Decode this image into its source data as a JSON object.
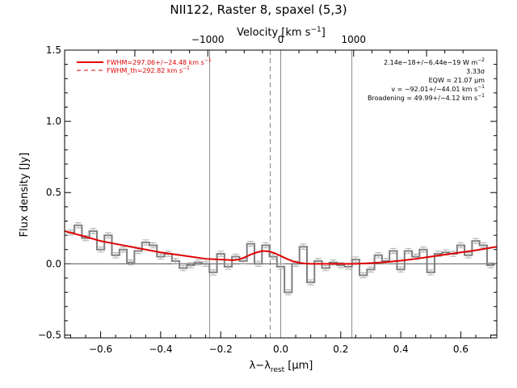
{
  "chart_data": {
    "type": "line",
    "title": "NII122, Raster 8, spaxel (5,3)",
    "xlabel": "λ−λ",
    "xlabel_sub": "rest",
    "xlabel_unit": " [μm]",
    "ylabel": "Flux density [Jy]",
    "top_axis_label": "Velocity [km s",
    "top_axis_label_sup": "−1",
    "top_axis_label_end": "]",
    "xlim": [
      -0.72,
      0.72
    ],
    "ylim": [
      -0.52,
      1.5
    ],
    "top_axis": {
      "ticks": [
        -1000,
        0,
        1000
      ],
      "tick_labels": [
        "−1000",
        "0",
        "1000"
      ],
      "um_per_kms": 0.000243
    },
    "x_ticks": [
      -0.6,
      -0.4,
      -0.2,
      0.0,
      0.2,
      0.4,
      0.6
    ],
    "x_tick_labels": [
      "−0.6",
      "−0.4",
      "−0.2",
      "0.0",
      "0.2",
      "0.4",
      "0.6"
    ],
    "y_ticks": [
      -0.5,
      0.0,
      0.5,
      1.0,
      1.5
    ],
    "y_tick_labels": [
      "−0.5",
      "0.0",
      "0.5",
      "1.0",
      "1.5"
    ],
    "vertical_lines": [
      {
        "x": -0.237,
        "style": "solid"
      },
      {
        "x": -0.035,
        "style": "dashed"
      },
      {
        "x": 0.0,
        "style": "solid"
      },
      {
        "x": 0.237,
        "style": "solid"
      }
    ],
    "series": [
      {
        "type": "step",
        "color": "#7f7f7f",
        "x": [
          -0.7,
          -0.675,
          -0.65,
          -0.625,
          -0.6,
          -0.575,
          -0.55,
          -0.525,
          -0.5,
          -0.475,
          -0.45,
          -0.425,
          -0.4,
          -0.375,
          -0.35,
          -0.325,
          -0.3,
          -0.275,
          -0.25,
          -0.225,
          -0.2,
          -0.175,
          -0.15,
          -0.125,
          -0.1,
          -0.075,
          -0.05,
          -0.025,
          0.0,
          0.025,
          0.05,
          0.075,
          0.1,
          0.125,
          0.15,
          0.175,
          0.2,
          0.225,
          0.25,
          0.275,
          0.3,
          0.325,
          0.35,
          0.375,
          0.4,
          0.425,
          0.45,
          0.475,
          0.5,
          0.525,
          0.55,
          0.575,
          0.6,
          0.625,
          0.65,
          0.675,
          0.7
        ],
        "values": [
          0.22,
          0.27,
          0.18,
          0.23,
          0.1,
          0.2,
          0.06,
          0.1,
          0.01,
          0.09,
          0.15,
          0.13,
          0.05,
          0.07,
          0.02,
          -0.03,
          -0.01,
          0.01,
          0.0,
          -0.06,
          0.07,
          -0.02,
          0.05,
          0.02,
          0.14,
          0.0,
          0.13,
          0.05,
          -0.02,
          -0.2,
          0.0,
          0.12,
          -0.13,
          0.02,
          -0.03,
          0.01,
          -0.01,
          -0.02,
          0.03,
          -0.08,
          -0.04,
          0.06,
          0.02,
          0.09,
          -0.04,
          0.09,
          0.05,
          0.1,
          -0.06,
          0.07,
          0.08,
          0.07,
          0.13,
          0.06,
          0.16,
          0.13,
          -0.01
        ]
      },
      {
        "type": "line",
        "color": "#e00000",
        "x": [
          -0.72,
          -0.65,
          -0.6,
          -0.55,
          -0.5,
          -0.45,
          -0.4,
          -0.35,
          -0.3,
          -0.25,
          -0.2,
          -0.18,
          -0.16,
          -0.14,
          -0.12,
          -0.1,
          -0.08,
          -0.06,
          -0.04,
          -0.02,
          0.0,
          0.02,
          0.04,
          0.06,
          0.08,
          0.1,
          0.15,
          0.2,
          0.25,
          0.3,
          0.35,
          0.4,
          0.45,
          0.5,
          0.55,
          0.6,
          0.65,
          0.72
        ],
        "values": [
          0.23,
          0.19,
          0.16,
          0.14,
          0.12,
          0.1,
          0.08,
          0.065,
          0.05,
          0.035,
          0.03,
          0.028,
          0.025,
          0.03,
          0.045,
          0.065,
          0.08,
          0.09,
          0.088,
          0.075,
          0.055,
          0.035,
          0.018,
          0.008,
          0.002,
          0.0,
          0.0,
          0.0,
          0.0,
          0.005,
          0.012,
          0.022,
          0.035,
          0.05,
          0.065,
          0.08,
          0.095,
          0.12
        ]
      }
    ],
    "legend": [
      {
        "label": "FWHM=297.06+/−24.48 km s",
        "sup": "−1",
        "color": "#e00000",
        "style": "solid"
      },
      {
        "label": "FWHM_th=292.82 km s",
        "sup": "−1",
        "color": "#e00000",
        "style": "dashed"
      }
    ],
    "annotations": [
      {
        "text": "2.14e−18+/−6.44e−19 W m",
        "sup": "−2"
      },
      {
        "text": "3.33σ",
        "sup": ""
      },
      {
        "text": "EQW = 21.07 μm",
        "sup": ""
      },
      {
        "text": "v = −92.01+/−44.01 km s",
        "sup": "−1"
      },
      {
        "text": "Broadening = 49.99+/−4.12 km s",
        "sup": "−1"
      }
    ]
  }
}
